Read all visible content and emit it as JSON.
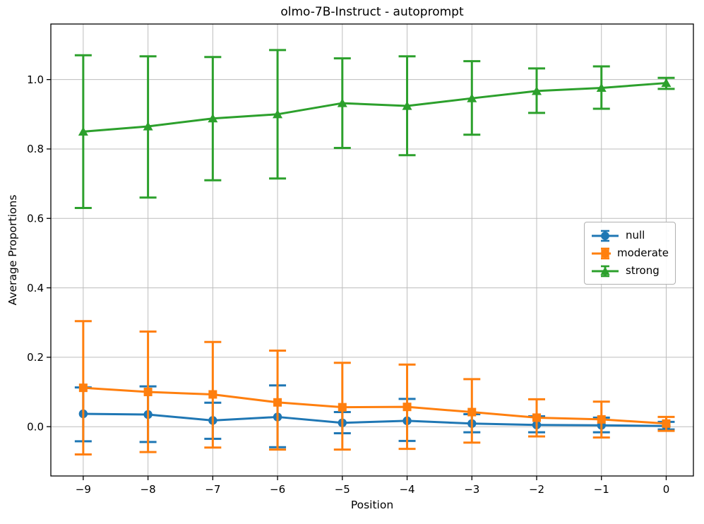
{
  "chart_data": {
    "type": "line",
    "title": "olmo-7B-Instruct - autoprompt",
    "xlabel": "Position",
    "ylabel": "Average Proportions",
    "grid": true,
    "legend_position": "center-right",
    "x": [
      -9,
      -8,
      -7,
      -6,
      -5,
      -4,
      -3,
      -2,
      -1,
      0
    ],
    "xtick_labels": [
      "−9",
      "−8",
      "−7",
      "−6",
      "−5",
      "−4",
      "−3",
      "−2",
      "−1",
      "0"
    ],
    "yticks": [
      0.0,
      0.2,
      0.4,
      0.6,
      0.8,
      1.0
    ],
    "ytick_labels": [
      "0.0",
      "0.2",
      "0.4",
      "0.6",
      "0.8",
      "1.0"
    ],
    "xlim": [
      -9.5,
      0.42
    ],
    "ylim": [
      -0.142,
      1.16
    ],
    "grid_color": "#bdbdbd",
    "series": [
      {
        "name": "null",
        "color": "#1f77b4",
        "marker": "circle",
        "values": [
          0.037,
          0.035,
          0.018,
          0.028,
          0.011,
          0.017,
          0.009,
          0.005,
          0.004,
          0.002
        ],
        "err_upper": [
          0.113,
          0.116,
          0.069,
          0.119,
          0.042,
          0.08,
          0.036,
          0.03,
          0.026,
          0.014
        ],
        "err_lower": [
          -0.042,
          -0.044,
          -0.035,
          -0.059,
          -0.019,
          -0.041,
          -0.016,
          -0.016,
          -0.016,
          -0.008
        ]
      },
      {
        "name": "moderate",
        "color": "#ff7f0e",
        "marker": "square",
        "values": [
          0.112,
          0.1,
          0.093,
          0.07,
          0.056,
          0.057,
          0.042,
          0.026,
          0.021,
          0.009
        ],
        "err_upper": [
          0.304,
          0.274,
          0.244,
          0.219,
          0.184,
          0.179,
          0.137,
          0.079,
          0.072,
          0.028
        ],
        "err_lower": [
          -0.08,
          -0.073,
          -0.06,
          -0.066,
          -0.066,
          -0.064,
          -0.046,
          -0.028,
          -0.031,
          -0.012
        ]
      },
      {
        "name": "strong",
        "color": "#2ca02c",
        "marker": "triangle",
        "values": [
          0.85,
          0.865,
          0.888,
          0.9,
          0.932,
          0.924,
          0.946,
          0.967,
          0.976,
          0.99
        ],
        "err_upper": [
          1.07,
          1.067,
          1.065,
          1.085,
          1.061,
          1.067,
          1.053,
          1.032,
          1.038,
          1.005
        ],
        "err_lower": [
          0.63,
          0.66,
          0.71,
          0.715,
          0.803,
          0.782,
          0.841,
          0.904,
          0.916,
          0.973
        ]
      }
    ]
  }
}
